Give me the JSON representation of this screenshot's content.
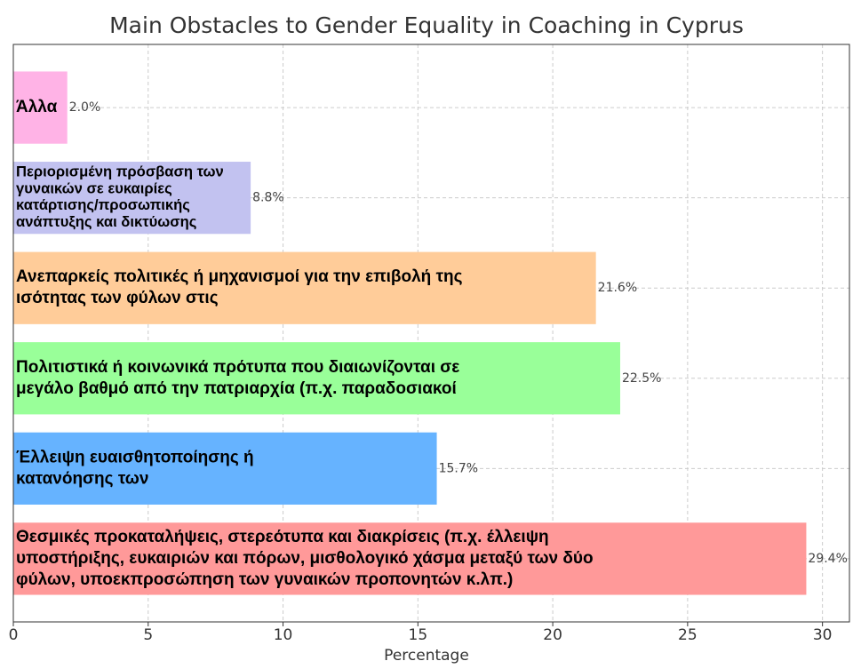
{
  "chart_data": {
    "type": "bar",
    "orientation": "horizontal",
    "title": "Main Obstacles to Gender Equality in Coaching in Cyprus",
    "xlabel": "Percentage",
    "categories": [
      "Άλλα",
      "Περιορισμένη πρόσβαση των\nγυναικών σε ευκαιρίες\nκατάρτισης/προσωπικής\nανάπτυξης και δικτύωσης",
      "Ανεπαρκείς πολιτικές ή μηχανισμοί για την επιβολή της\nισότητας των φύλων στις",
      "Πολιτιστικά ή κοινωνικά πρότυπα που διαιωνίζονται σε\nμεγάλο βαθμό από την πατριαρχία (π.χ. παραδοσιακοί",
      "Έλλειψη ευαισθητοποίησης ή\nκατανόησης των",
      "Θεσμικές προκαταλήψεις, στερεότυπα και διακρίσεις (π.χ. έλλειψη\nυποστήριξης, ευκαιριών και πόρων, μισθολογικό χάσμα μεταξύ των δύο\nφύλων, υποεκπροσώπηση των γυναικών προπονητών κ.λπ.)"
    ],
    "values": [
      2.0,
      8.8,
      21.6,
      22.5,
      15.7,
      29.4
    ],
    "value_labels": [
      "2.0%",
      "8.8%",
      "21.6%",
      "22.5%",
      "15.7%",
      "29.4%"
    ],
    "colors": [
      "#ffb3e6",
      "#c2c2f0",
      "#ffcc99",
      "#99ff99",
      "#66b3ff",
      "#ff9999"
    ],
    "xlim": [
      0,
      31
    ],
    "xticks": [
      0,
      5,
      10,
      15,
      20,
      25,
      30
    ],
    "grid": true
  }
}
